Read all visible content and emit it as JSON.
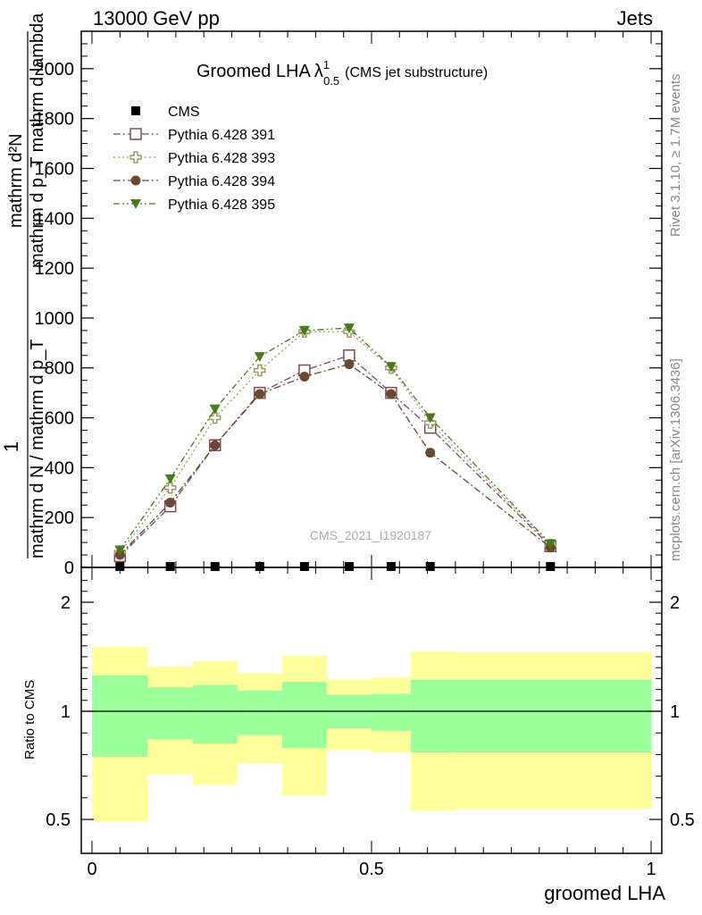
{
  "header": {
    "left": "13000 GeV pp",
    "right": "Jets"
  },
  "side_labels": {
    "rivet": "Rivet 3.1.10, ≥ 1.7M events",
    "mcplots": "mcplots.cern.ch [arXiv:1306.3436]"
  },
  "watermark": "CMS_2021_I1920187",
  "chart_data": [
    {
      "type": "line",
      "title_main": "Groomed LHA",
      "title_lambda": "λ",
      "title_sup": "1",
      "title_sub": "0.5",
      "title_suffix": "(CMS jet substructure)",
      "ylabel_top": "mathrm d²N",
      "ylabel_top_fraction": "mathrm d p_T mathrm d lambda",
      "ylabel_bottom_one": "1",
      "ylabel_bottom_fraction": "mathrm d N / mathrm d p_T",
      "xlim": [
        0,
        1
      ],
      "ylim": [
        0,
        2150
      ],
      "y_ticks": [
        0,
        200,
        400,
        600,
        800,
        1000,
        1200,
        1400,
        1600,
        1800,
        2000
      ],
      "legend_position": "top-left",
      "series": [
        {
          "name": "CMS",
          "marker": "square-filled",
          "color": "#000000",
          "x": [
            0.05,
            0.14,
            0.22,
            0.3,
            0.38,
            0.46,
            0.535,
            0.605,
            0.82
          ],
          "y": [
            0,
            0,
            0,
            0,
            0,
            0,
            0,
            0,
            0
          ]
        },
        {
          "name": "Pythia 6.428 391",
          "marker": "square-open",
          "color": "#7b4a5e",
          "dash": "dashdot",
          "x": [
            0.05,
            0.14,
            0.22,
            0.3,
            0.38,
            0.46,
            0.535,
            0.605,
            0.82
          ],
          "y": [
            45,
            245,
            490,
            700,
            790,
            850,
            700,
            560,
            85
          ]
        },
        {
          "name": "Pythia 6.428 393",
          "marker": "cross-open",
          "color": "#9c9a62",
          "dash": "dotted",
          "x": [
            0.05,
            0.14,
            0.22,
            0.3,
            0.38,
            0.46,
            0.535,
            0.605,
            0.82
          ],
          "y": [
            60,
            320,
            600,
            790,
            945,
            945,
            800,
            580,
            90
          ]
        },
        {
          "name": "Pythia 6.428 394",
          "marker": "circle-filled",
          "color": "#6a4a2e",
          "dash": "dashdot",
          "x": [
            0.05,
            0.14,
            0.22,
            0.3,
            0.38,
            0.46,
            0.535,
            0.605,
            0.82
          ],
          "y": [
            50,
            260,
            490,
            695,
            765,
            815,
            695,
            460,
            80
          ]
        },
        {
          "name": "Pythia 6.428 395",
          "marker": "triangle-down-filled",
          "color": "#4a7a1e",
          "dash": "dashdotdot",
          "x": [
            0.05,
            0.14,
            0.22,
            0.3,
            0.38,
            0.46,
            0.535,
            0.605,
            0.82
          ],
          "y": [
            70,
            355,
            635,
            845,
            950,
            960,
            805,
            600,
            95
          ]
        }
      ]
    },
    {
      "type": "area",
      "ylabel": "Ratio to CMS",
      "xlabel": "groomed LHA",
      "xlim": [
        0,
        1
      ],
      "ylim": [
        0.35,
        2.3
      ],
      "y_ticks": [
        0.5,
        1,
        2
      ],
      "x_ticks": [
        0,
        0.5,
        1
      ],
      "reference_line": 1,
      "bands": [
        {
          "x0": 0.0,
          "x1": 0.1,
          "inner": [
            0.79,
            1.33
          ],
          "outer": [
            0.49,
            1.59
          ]
        },
        {
          "x0": 0.1,
          "x1": 0.18,
          "inner": [
            0.87,
            1.22
          ],
          "outer": [
            0.71,
            1.41
          ]
        },
        {
          "x0": 0.18,
          "x1": 0.26,
          "inner": [
            0.85,
            1.24
          ],
          "outer": [
            0.66,
            1.46
          ]
        },
        {
          "x0": 0.26,
          "x1": 0.34,
          "inner": [
            0.89,
            1.19
          ],
          "outer": [
            0.76,
            1.35
          ]
        },
        {
          "x0": 0.34,
          "x1": 0.42,
          "inner": [
            0.83,
            1.27
          ],
          "outer": [
            0.61,
            1.51
          ]
        },
        {
          "x0": 0.42,
          "x1": 0.5,
          "inner": [
            0.92,
            1.15
          ],
          "outer": [
            0.82,
            1.29
          ]
        },
        {
          "x0": 0.5,
          "x1": 0.57,
          "inner": [
            0.91,
            1.16
          ],
          "outer": [
            0.81,
            1.31
          ]
        },
        {
          "x0": 0.57,
          "x1": 0.65,
          "inner": [
            0.81,
            1.29
          ],
          "outer": [
            0.54,
            1.55
          ]
        },
        {
          "x0": 0.65,
          "x1": 1.0,
          "inner": [
            0.81,
            1.29
          ],
          "outer": [
            0.55,
            1.54
          ]
        }
      ],
      "band_colors": {
        "inner": "#9bff9b",
        "outer": "#ffff9b"
      }
    }
  ]
}
